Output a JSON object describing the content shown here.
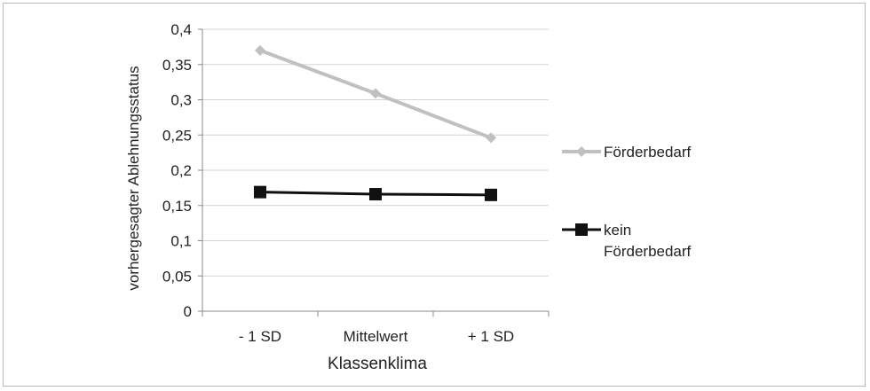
{
  "chart_data": {
    "type": "line",
    "categories": [
      "- 1 SD",
      "Mittelwert",
      "+ 1 SD"
    ],
    "xlabel": "Klassenklima",
    "ylabel": "vorhergesagter Ablehnungsstatus",
    "ylim": [
      0,
      0.4
    ],
    "ytick_labels": [
      "0",
      "0,05",
      "0,1",
      "0,15",
      "0,2",
      "0,25",
      "0,3",
      "0,35",
      "0,4"
    ],
    "grid": "horizontal",
    "legend_position": "right",
    "series": [
      {
        "name": "Förderbedarf",
        "values": [
          0.37,
          0.309,
          0.246
        ],
        "color": "#c0c0c0",
        "marker": "diamond"
      },
      {
        "name": "kein Förderbedarf",
        "legend_lines": [
          "kein",
          "Förderbedarf"
        ],
        "values": [
          0.169,
          0.166,
          0.165
        ],
        "color": "#111111",
        "marker": "square"
      }
    ]
  }
}
